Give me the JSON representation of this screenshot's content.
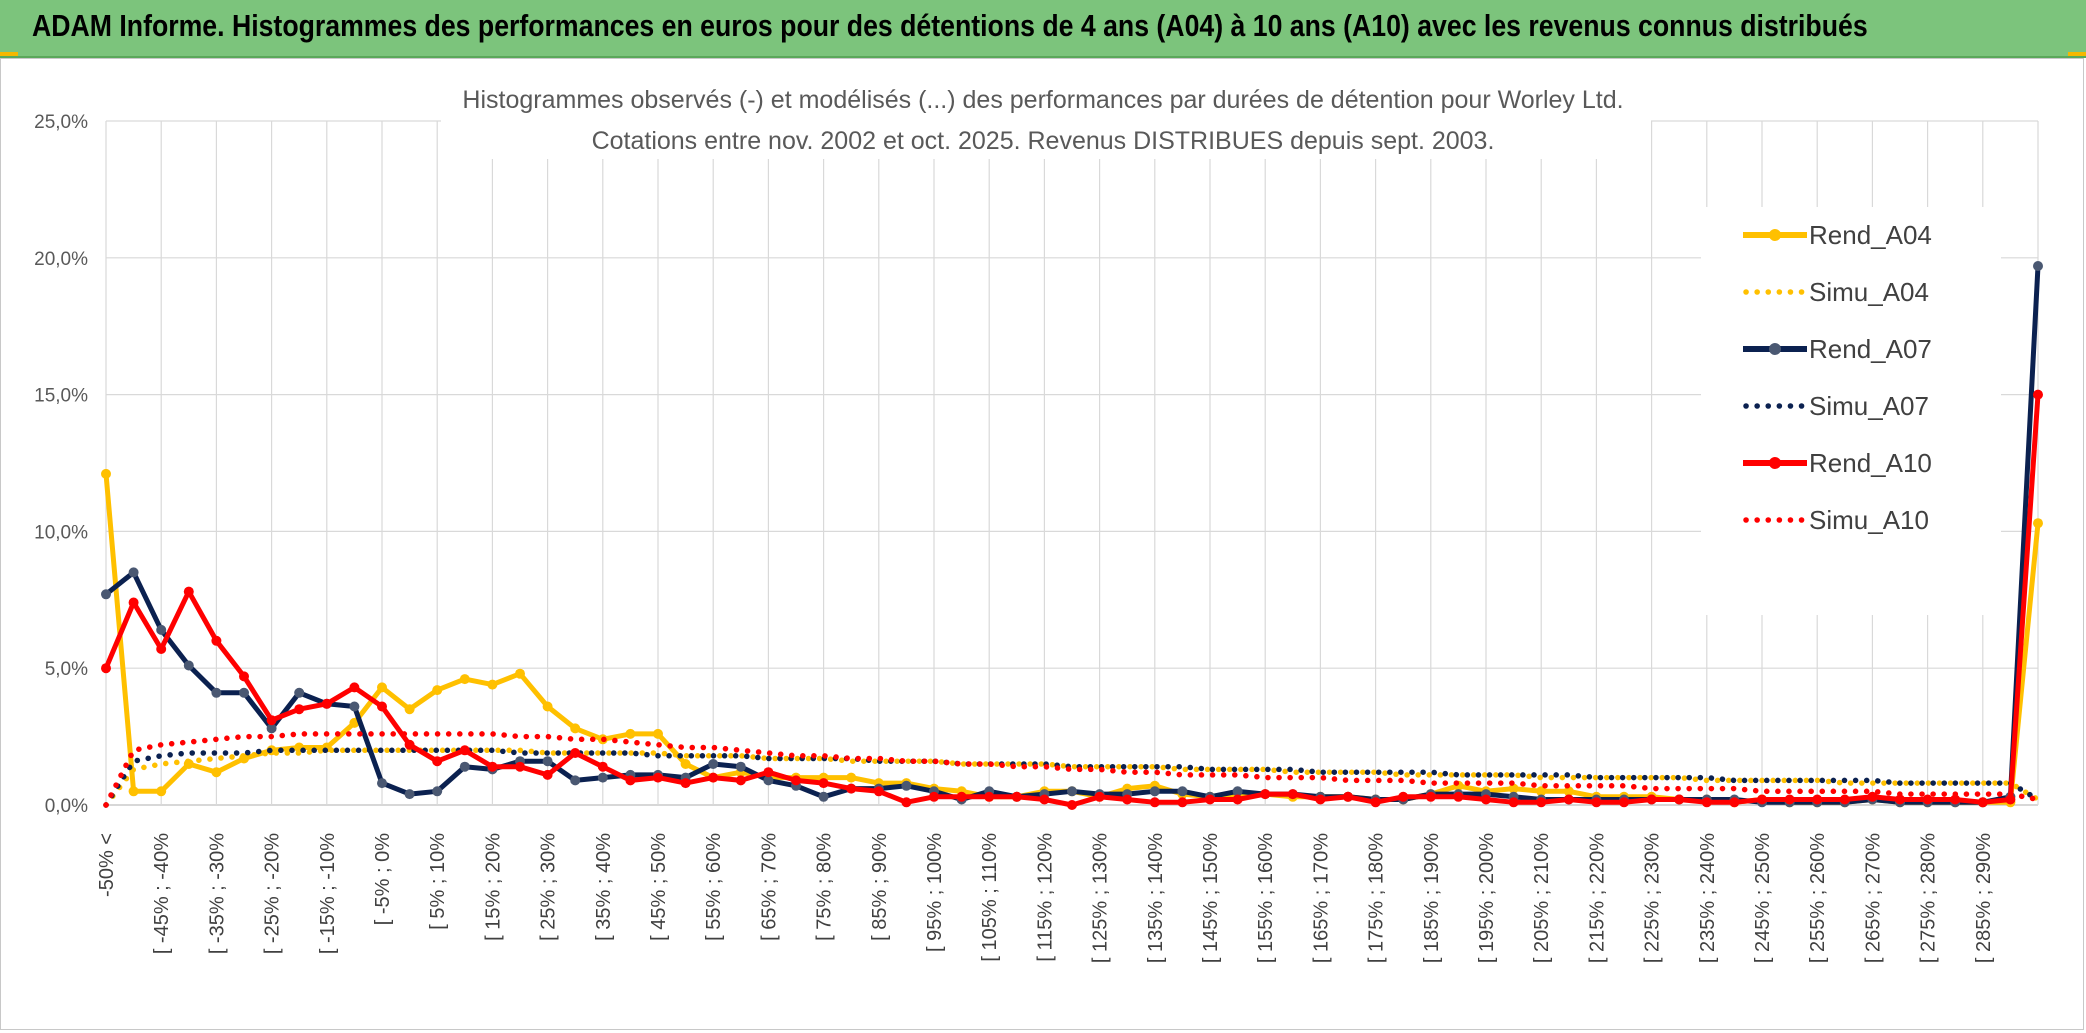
{
  "banner": {
    "title": "ADAM Informe. Histogrammes des performances en euros pour des détentions de 4 ans (A04) à 10 ans (A10) avec les revenus connus distribués"
  },
  "colors": {
    "banner_bg": "#7cc47c",
    "rend_a04": "#ffc000",
    "rend_a07": "#0b2150",
    "rend_a10": "#ff0000"
  },
  "chart_data": {
    "type": "line",
    "title_line1": "Histogrammes observés (-) et modélisés (...) des performances par durées de détention pour Worley Ltd.",
    "title_line2": "Cotations entre nov. 2002 et oct. 2025. Revenus DISTRIBUES depuis sept. 2003.",
    "ylim": [
      0,
      25
    ],
    "y_ticks": [
      "0,0%",
      "5,0%",
      "10,0%",
      "15,0%",
      "20,0%",
      "25,0%"
    ],
    "grid": true,
    "legend_position": "right",
    "x_labels": [
      "-50% <",
      "[ -45% ; -40%",
      "[ -35% ; -30%",
      "[ -25% ; -20%",
      "[ -15% ; -10%",
      "[ -5% ; 0%",
      "[ 5% ; 10%",
      "[ 15% ; 20%",
      "[ 25% ; 30%",
      "[ 35% ; 40%",
      "[ 45% ; 50%",
      "[ 55% ; 60%",
      "[ 65% ; 70%",
      "[ 75% ; 80%",
      "[ 85% ; 90%",
      "[ 95% ; 100%",
      "[ 105% ; 110%",
      "[ 115% ; 120%",
      "[ 125% ; 130%",
      "[ 135% ; 140%",
      "[ 145% ; 150%",
      "[ 155% ; 160%",
      "[ 165% ; 170%",
      "[ 175% ; 180%",
      "[ 185% ; 190%",
      "[ 195% ; 200%",
      "[ 205% ; 210%",
      "[ 215% ; 220%",
      "[ 225% ; 230%",
      "[ 235% ; 240%",
      "[ 245% ; 250%",
      "[ 255% ; 260%",
      "[ 265% ; 270%",
      "[ 275% ; 280%",
      "[ 285% ; 290%"
    ],
    "series": [
      {
        "name": "Rend_A04",
        "style": "solid",
        "color": "#ffc000",
        "values": [
          12.1,
          0.5,
          0.5,
          1.5,
          1.2,
          1.7,
          2.0,
          2.1,
          2.1,
          3.0,
          4.3,
          3.5,
          4.2,
          4.6,
          4.4,
          4.8,
          3.6,
          2.8,
          2.4,
          2.6,
          2.6,
          1.5,
          1.0,
          1.2,
          1.0,
          1.0,
          1.0,
          1.0,
          0.8,
          0.8,
          0.6,
          0.5,
          0.3,
          0.3,
          0.5,
          0.5,
          0.3,
          0.6,
          0.7,
          0.4,
          0.3,
          0.3,
          0.4,
          0.3,
          0.3,
          0.3,
          0.2,
          0.2,
          0.4,
          0.7,
          0.5,
          0.6,
          0.5,
          0.5,
          0.3,
          0.3,
          0.3,
          0.2,
          0.2,
          0.1,
          0.2,
          0.1,
          0.1,
          0.1,
          0.2,
          0.1,
          0.1,
          0.1,
          0.1,
          0.1,
          10.3
        ]
      },
      {
        "name": "Simu_A04",
        "style": "dotted",
        "color": "#ffc000",
        "values": [
          0.0,
          1.3,
          1.5,
          1.6,
          1.7,
          1.8,
          1.9,
          1.9,
          2.0,
          2.0,
          2.0,
          2.0,
          2.0,
          2.0,
          2.0,
          2.0,
          1.9,
          1.9,
          1.9,
          1.9,
          1.9,
          1.8,
          1.8,
          1.8,
          1.7,
          1.7,
          1.7,
          1.6,
          1.6,
          1.6,
          1.6,
          1.5,
          1.5,
          1.5,
          1.5,
          1.4,
          1.4,
          1.4,
          1.4,
          1.3,
          1.3,
          1.3,
          1.3,
          1.2,
          1.2,
          1.2,
          1.2,
          1.1,
          1.1,
          1.1,
          1.1,
          1.1,
          1.0,
          1.0,
          1.0,
          1.0,
          1.0,
          1.0,
          0.9,
          0.9,
          0.9,
          0.9,
          0.9,
          0.8,
          0.8,
          0.8,
          0.8,
          0.8,
          0.8,
          0.8,
          0.2
        ]
      },
      {
        "name": "Rend_A07",
        "style": "solid",
        "color": "#0b2150",
        "values": [
          7.7,
          8.5,
          6.4,
          5.1,
          4.1,
          4.1,
          2.8,
          4.1,
          3.7,
          3.6,
          0.8,
          0.4,
          0.5,
          1.4,
          1.3,
          1.6,
          1.6,
          0.9,
          1.0,
          1.1,
          1.1,
          1.0,
          1.5,
          1.4,
          0.9,
          0.7,
          0.3,
          0.6,
          0.6,
          0.7,
          0.5,
          0.2,
          0.5,
          0.3,
          0.4,
          0.5,
          0.4,
          0.4,
          0.5,
          0.5,
          0.3,
          0.5,
          0.4,
          0.4,
          0.3,
          0.3,
          0.2,
          0.2,
          0.4,
          0.4,
          0.4,
          0.3,
          0.2,
          0.2,
          0.2,
          0.2,
          0.2,
          0.2,
          0.2,
          0.2,
          0.1,
          0.1,
          0.1,
          0.1,
          0.2,
          0.1,
          0.1,
          0.1,
          0.1,
          0.3,
          19.7
        ]
      },
      {
        "name": "Simu_A07",
        "style": "dotted",
        "color": "#0b2150",
        "values": [
          0.0,
          1.6,
          1.8,
          1.9,
          1.9,
          1.9,
          2.0,
          2.0,
          2.0,
          2.0,
          2.0,
          2.0,
          2.0,
          2.0,
          2.0,
          1.9,
          1.9,
          1.9,
          1.9,
          1.9,
          1.8,
          1.8,
          1.8,
          1.8,
          1.7,
          1.7,
          1.7,
          1.7,
          1.6,
          1.6,
          1.6,
          1.5,
          1.5,
          1.5,
          1.5,
          1.4,
          1.4,
          1.4,
          1.4,
          1.4,
          1.3,
          1.3,
          1.3,
          1.3,
          1.2,
          1.2,
          1.2,
          1.2,
          1.2,
          1.1,
          1.1,
          1.1,
          1.1,
          1.1,
          1.0,
          1.0,
          1.0,
          1.0,
          1.0,
          0.9,
          0.9,
          0.9,
          0.9,
          0.9,
          0.9,
          0.8,
          0.8,
          0.8,
          0.8,
          0.8,
          0.2
        ]
      },
      {
        "name": "Rend_A10",
        "style": "solid",
        "color": "#ff0000",
        "values": [
          5.0,
          7.4,
          5.7,
          7.8,
          6.0,
          4.7,
          3.1,
          3.5,
          3.7,
          4.3,
          3.6,
          2.2,
          1.6,
          2.0,
          1.4,
          1.4,
          1.1,
          1.9,
          1.4,
          0.9,
          1.0,
          0.8,
          1.0,
          0.9,
          1.2,
          0.9,
          0.8,
          0.6,
          0.5,
          0.1,
          0.3,
          0.3,
          0.3,
          0.3,
          0.2,
          0.0,
          0.3,
          0.2,
          0.1,
          0.1,
          0.2,
          0.2,
          0.4,
          0.4,
          0.2,
          0.3,
          0.1,
          0.3,
          0.3,
          0.3,
          0.2,
          0.1,
          0.1,
          0.2,
          0.1,
          0.1,
          0.2,
          0.2,
          0.1,
          0.1,
          0.2,
          0.2,
          0.2,
          0.2,
          0.3,
          0.2,
          0.2,
          0.2,
          0.1,
          0.2,
          15.0
        ]
      },
      {
        "name": "Simu_A10",
        "style": "dotted",
        "color": "#ff0000",
        "values": [
          0.0,
          2.0,
          2.2,
          2.3,
          2.4,
          2.5,
          2.5,
          2.6,
          2.6,
          2.6,
          2.6,
          2.6,
          2.6,
          2.6,
          2.6,
          2.5,
          2.5,
          2.4,
          2.4,
          2.3,
          2.2,
          2.1,
          2.1,
          2.0,
          1.9,
          1.8,
          1.8,
          1.7,
          1.7,
          1.6,
          1.6,
          1.5,
          1.5,
          1.4,
          1.4,
          1.3,
          1.3,
          1.2,
          1.2,
          1.1,
          1.1,
          1.1,
          1.0,
          1.0,
          1.0,
          0.9,
          0.9,
          0.9,
          0.8,
          0.8,
          0.8,
          0.8,
          0.7,
          0.7,
          0.7,
          0.7,
          0.6,
          0.6,
          0.6,
          0.6,
          0.5,
          0.5,
          0.5,
          0.5,
          0.5,
          0.4,
          0.4,
          0.4,
          0.4,
          0.4,
          0.2
        ]
      }
    ]
  }
}
